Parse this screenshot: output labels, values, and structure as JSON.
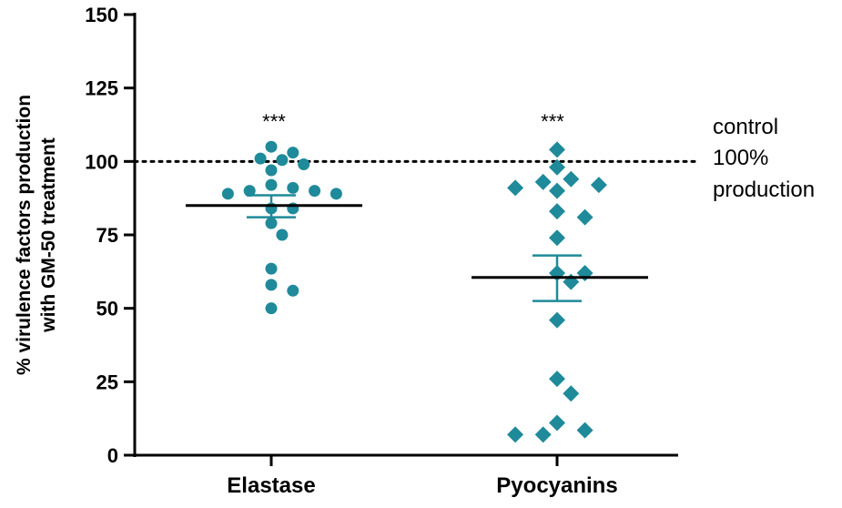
{
  "chart_data": {
    "type": "scatter",
    "ylabel_lines": [
      "% virulence factors production",
      "with GM-50 treatment"
    ],
    "xlabel": "",
    "ylim": [
      0,
      150
    ],
    "yticks": [
      0,
      25,
      50,
      75,
      100,
      125,
      150
    ],
    "grid": false,
    "categories": [
      "Elastase",
      "Pyocyanins"
    ],
    "series": [
      {
        "category": "Elastase",
        "marker": "circle",
        "color": "#1f8a9a",
        "values": [
          105,
          103,
          101,
          100.5,
          99,
          97,
          92,
          91,
          90,
          90,
          89,
          89,
          84,
          84,
          79,
          75,
          63.5,
          58,
          56,
          50
        ],
        "mean": 85,
        "sem": [
          81,
          88.5
        ],
        "significance": "***"
      },
      {
        "category": "Pyocyanins",
        "marker": "diamond",
        "color": "#1f8a9a",
        "values": [
          104,
          98,
          94,
          93,
          92,
          91,
          90,
          83,
          81,
          74,
          62,
          62,
          59,
          46,
          26,
          21,
          11,
          8.5,
          7,
          7
        ],
        "mean": 60.5,
        "sem": [
          52.5,
          68
        ],
        "significance": "***"
      }
    ],
    "reference_line": {
      "y": 100,
      "style": "dotted"
    },
    "annotation_lines": [
      "control",
      "100%",
      "production"
    ]
  }
}
